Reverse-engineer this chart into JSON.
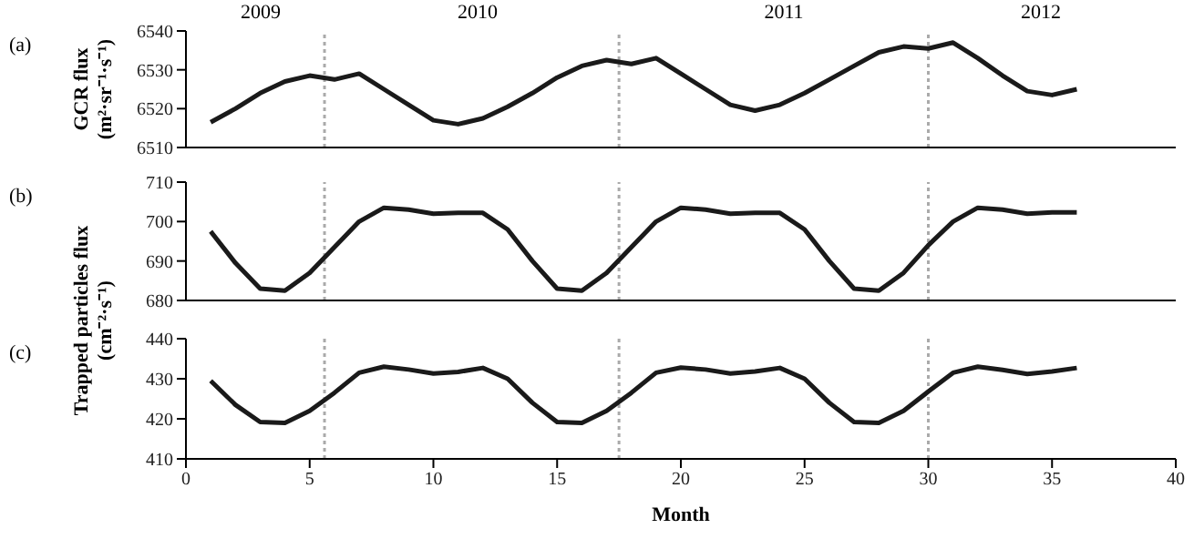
{
  "chart_data": [
    {
      "type": "line",
      "ylabel": "GCR flux\n(m²·sr⁻¹·s⁻¹)",
      "annotations": [
        "(a)",
        "2009",
        "2010",
        "2011",
        "2012"
      ],
      "x": [
        1,
        2,
        3,
        4,
        5,
        6,
        7,
        8,
        9,
        10,
        11,
        12,
        13,
        14,
        15,
        16,
        17,
        18,
        19,
        20,
        21,
        22,
        23,
        24,
        25,
        26,
        27,
        28,
        29,
        30,
        31,
        32,
        33,
        34,
        35,
        36
      ],
      "series": [
        {
          "color": "#1a1a1a",
          "values": [
            6516.5,
            6520,
            6524,
            6527,
            6528.5,
            6527.5,
            6529,
            6525,
            6521,
            6517,
            6516,
            6517.5,
            6520.5,
            6524,
            6528,
            6531,
            6532.5,
            6531.5,
            6533,
            6529,
            6525,
            6521,
            6519.5,
            6521,
            6524,
            6527.5,
            6531,
            6534.5,
            6536,
            6535.5,
            6537,
            6533,
            6528.5,
            6524.5,
            6523.5,
            6525
          ]
        }
      ],
      "xlim": [
        0,
        40
      ],
      "xticks": [
        0,
        5,
        10,
        15,
        20,
        25,
        30,
        35,
        40
      ],
      "ylim": [
        6510,
        6540
      ],
      "yticks": [
        6510,
        6520,
        6530,
        6540
      ],
      "tick_labels": "y",
      "ref_lines": [
        {
          "axis": "x",
          "value": 5.6,
          "color": "#aaaaaa",
          "line_style": "dotted"
        },
        {
          "axis": "x",
          "value": 17.5,
          "color": "#aaaaaa",
          "line_style": "dotted"
        },
        {
          "axis": "x",
          "value": 30,
          "color": "#aaaaaa",
          "line_style": "dotted"
        }
      ],
      "grid": false,
      "legend": false,
      "marker": "none",
      "line_style": "solid"
    },
    {
      "type": "line",
      "ylabel": "Trapped particles flux\n(cm⁻²·s⁻¹)",
      "annotations": [
        "(b)"
      ],
      "x": [
        1,
        2,
        3,
        4,
        5,
        6,
        7,
        8,
        9,
        10,
        11,
        12,
        13,
        14,
        15,
        16,
        17,
        18,
        19,
        20,
        21,
        22,
        23,
        24,
        25,
        26,
        27,
        28,
        29,
        30,
        31,
        32,
        33,
        34,
        35,
        36
      ],
      "series": [
        {
          "color": "#1a1a1a",
          "values": [
            697.5,
            689.5,
            683,
            682.5,
            687,
            693.5,
            700,
            703.5,
            703,
            702,
            702.2,
            702.2,
            698,
            690,
            683,
            682.5,
            687,
            693.5,
            700,
            703.5,
            703,
            702,
            702.2,
            702.2,
            698,
            690,
            683,
            682.5,
            687,
            694,
            700,
            703.5,
            703,
            702,
            702.3,
            702.3
          ]
        }
      ],
      "xlim": [
        0,
        40
      ],
      "xticks": [
        0,
        5,
        10,
        15,
        20,
        25,
        30,
        35,
        40
      ],
      "ylim": [
        680,
        710
      ],
      "yticks": [
        680,
        690,
        700,
        710
      ],
      "tick_labels": "y",
      "ref_lines": [
        {
          "axis": "x",
          "value": 5.6,
          "color": "#aaaaaa",
          "line_style": "dotted"
        },
        {
          "axis": "x",
          "value": 17.5,
          "color": "#aaaaaa",
          "line_style": "dotted"
        },
        {
          "axis": "x",
          "value": 30,
          "color": "#aaaaaa",
          "line_style": "dotted"
        }
      ],
      "grid": false,
      "legend": false,
      "marker": "none",
      "line_style": "solid"
    },
    {
      "type": "line",
      "xlabel": "Month",
      "annotations": [
        "(c)"
      ],
      "x": [
        1,
        2,
        3,
        4,
        5,
        6,
        7,
        8,
        9,
        10,
        11,
        12,
        13,
        14,
        15,
        16,
        17,
        18,
        19,
        20,
        21,
        22,
        23,
        24,
        25,
        26,
        27,
        28,
        29,
        30,
        31,
        32,
        33,
        34,
        35,
        36
      ],
      "series": [
        {
          "color": "#1a1a1a",
          "values": [
            429.5,
            423.5,
            419.2,
            419,
            422,
            426.5,
            431.5,
            433,
            432.3,
            431.3,
            431.7,
            432.7,
            430,
            424,
            419.2,
            419,
            422,
            426.5,
            431.5,
            432.8,
            432.3,
            431.3,
            431.8,
            432.7,
            430,
            424,
            419.2,
            419,
            422,
            426.8,
            431.5,
            433,
            432.2,
            431.2,
            431.8,
            432.7
          ]
        }
      ],
      "xlim": [
        0,
        40
      ],
      "xticks": [
        0,
        5,
        10,
        15,
        20,
        25,
        30,
        35,
        40
      ],
      "ylim": [
        410,
        440
      ],
      "yticks": [
        410,
        420,
        430,
        440
      ],
      "ref_lines": [
        {
          "axis": "x",
          "value": 5.6,
          "color": "#aaaaaa",
          "line_style": "dotted"
        },
        {
          "axis": "x",
          "value": 17.5,
          "color": "#aaaaaa",
          "line_style": "dotted"
        },
        {
          "axis": "x",
          "value": 30,
          "color": "#aaaaaa",
          "line_style": "dotted"
        }
      ],
      "grid": false,
      "legend": false,
      "marker": "none",
      "line_style": "solid"
    }
  ]
}
